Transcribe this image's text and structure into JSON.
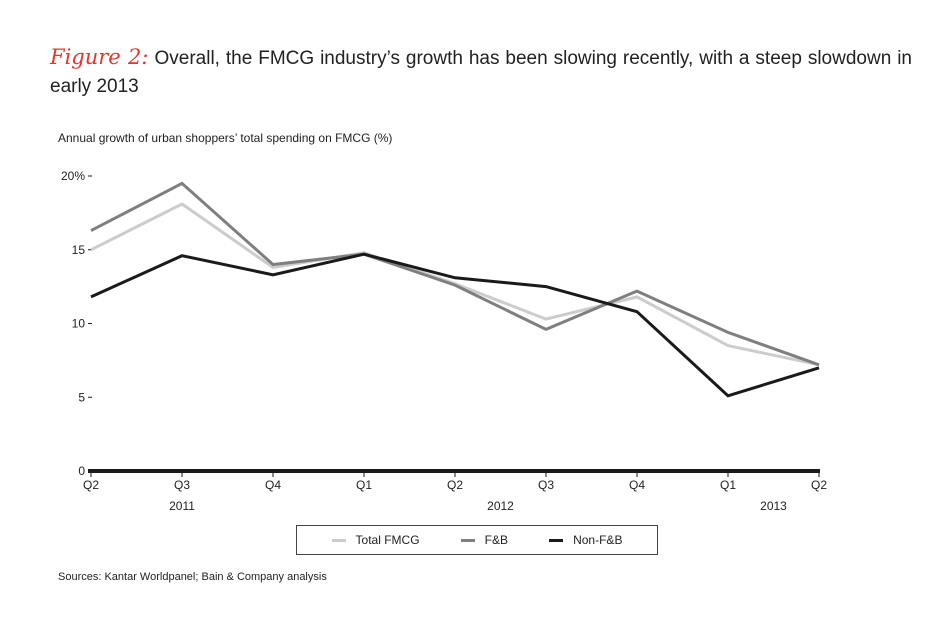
{
  "figure": {
    "label": "Figure 2:",
    "title": "Overall, the FMCG industry’s growth has been slowing recently, with a steep slowdown in early 2013"
  },
  "chart_data": {
    "type": "line",
    "title": "Annual growth of urban shoppers’ total spending on FMCG (%)",
    "categories": [
      "Q2",
      "Q3",
      "Q4",
      "Q1",
      "Q2",
      "Q3",
      "Q4",
      "Q1",
      "Q2"
    ],
    "year_labels": [
      {
        "label": "2011",
        "category_index": 1
      },
      {
        "label": "2012",
        "category_index": 4.5
      },
      {
        "label": "2013",
        "category_index": 7.5
      }
    ],
    "y_ticks": [
      "0",
      "5",
      "10",
      "15",
      "20%"
    ],
    "ylim": [
      0,
      20
    ],
    "series": [
      {
        "name": "Total FMCG",
        "color": "#cccccc",
        "values": [
          15.0,
          18.1,
          13.8,
          14.8,
          12.7,
          10.3,
          11.8,
          8.5,
          7.2
        ]
      },
      {
        "name": "F&B",
        "color": "#7f7f7f",
        "values": [
          16.3,
          19.5,
          14.0,
          14.7,
          12.6,
          9.6,
          12.2,
          9.4,
          7.2
        ]
      },
      {
        "name": "Non-F&B",
        "color": "#1a1a1a",
        "values": [
          11.8,
          14.6,
          13.3,
          14.7,
          13.1,
          12.5,
          10.8,
          5.1,
          7.0
        ]
      }
    ]
  },
  "source": "Sources: Kantar Worldpanel; Bain & Company analysis"
}
